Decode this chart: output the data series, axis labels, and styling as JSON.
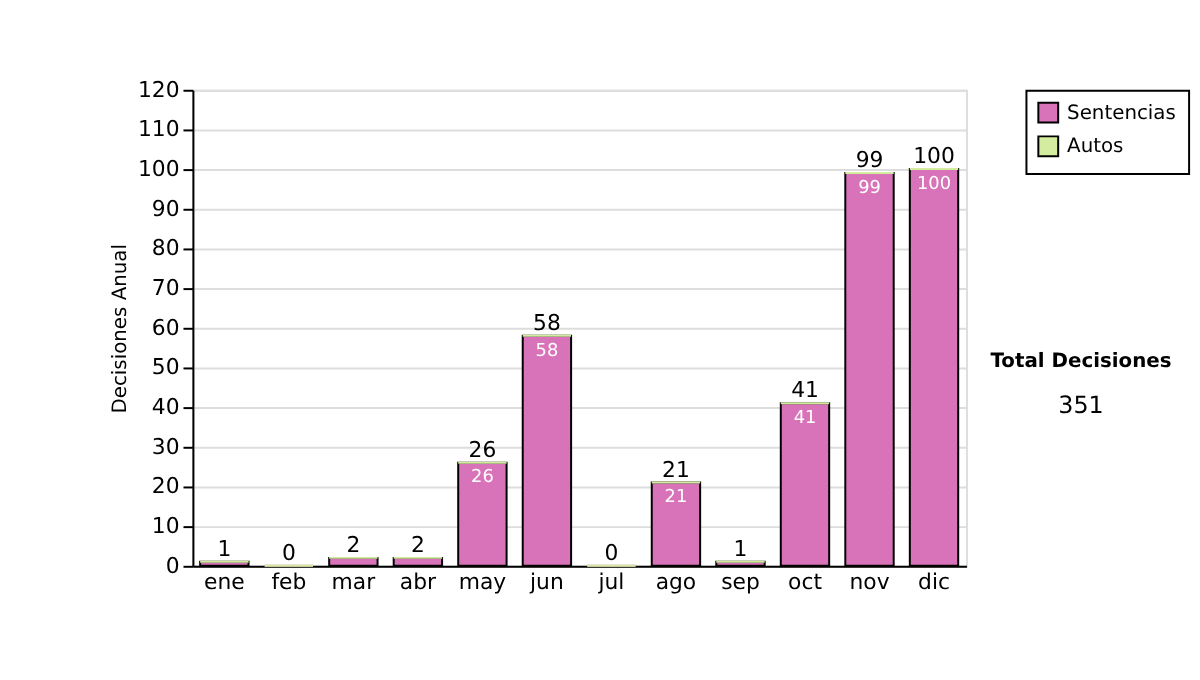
{
  "chart_data": {
    "type": "bar",
    "stacked": true,
    "ylabel": "Decisiones Anual",
    "categories": [
      "ene",
      "feb",
      "mar",
      "abr",
      "may",
      "jun",
      "jul",
      "ago",
      "sep",
      "oct",
      "nov",
      "dic"
    ],
    "series": [
      {
        "name": "Sentencias",
        "color": "#d973b9",
        "values": [
          1,
          0,
          2,
          2,
          26,
          58,
          0,
          21,
          1,
          41,
          99,
          100
        ],
        "value_labels": [
          null,
          null,
          null,
          null,
          "26",
          "58",
          null,
          "21",
          null,
          "41",
          "99",
          "100"
        ]
      },
      {
        "name": "Autos",
        "color": "#d4eca0",
        "values": [
          0,
          0,
          0,
          0,
          0,
          0,
          0,
          0,
          0,
          0,
          0,
          0
        ]
      }
    ],
    "totals": [
      "1",
      "0",
      "2",
      "2",
      "26",
      "58",
      "0",
      "21",
      "1",
      "41",
      "99",
      "100"
    ],
    "ylim": [
      0,
      120
    ],
    "yticks": [
      0,
      10,
      20,
      30,
      40,
      50,
      60,
      70,
      80,
      90,
      100,
      110,
      120
    ],
    "grid": "y",
    "legend": "right",
    "annotations": [
      "Total Decisiones",
      "351"
    ]
  }
}
